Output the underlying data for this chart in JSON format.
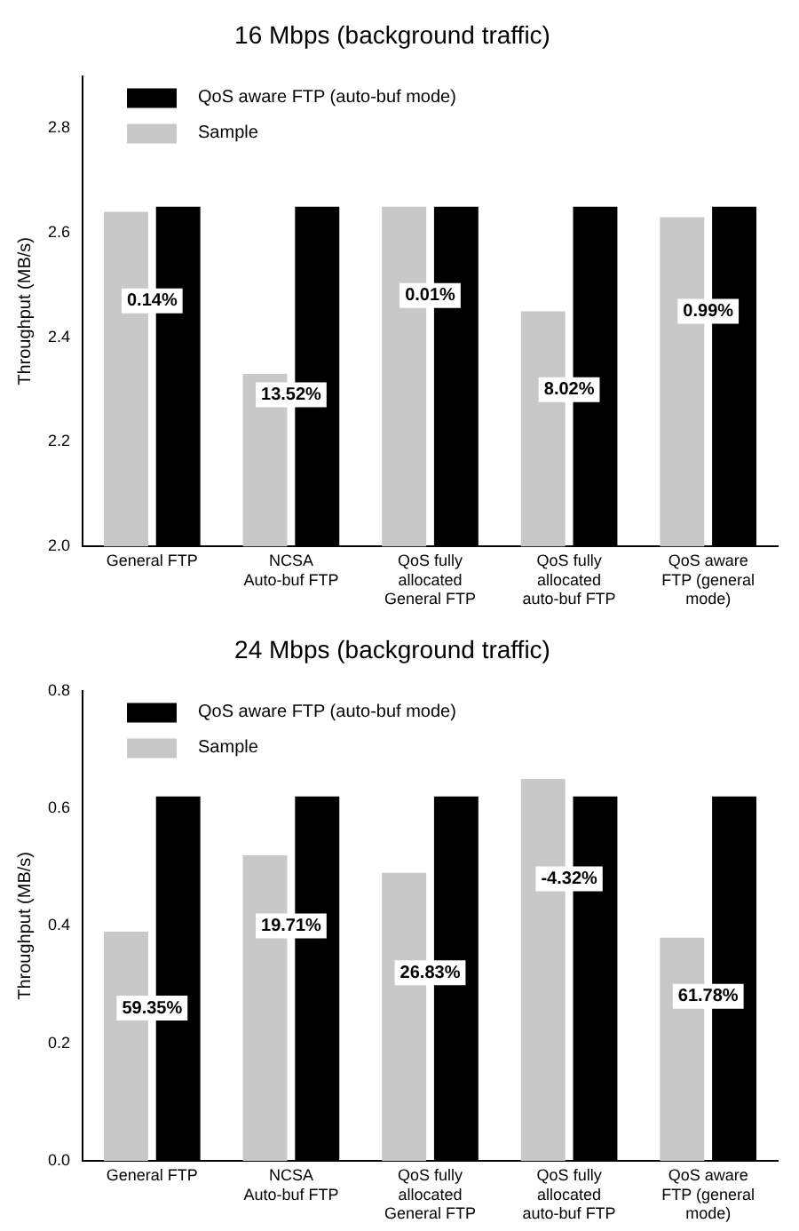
{
  "chart_data": [
    {
      "type": "bar",
      "title": "16 Mbps (background traffic)",
      "ylabel": "Throughput (MB/s)",
      "categories": [
        "General FTP",
        "NCSA Auto-buf FTP",
        "QoS fully allocated General FTP",
        "QoS fully allocated auto-buf FTP",
        "QoS aware FTP (general mode)"
      ],
      "series": [
        {
          "name": "Sample",
          "color": "#c8c8c8",
          "values": [
            2.64,
            2.33,
            2.65,
            2.45,
            2.63
          ]
        },
        {
          "name": "QoS aware FTP (auto-buf mode)",
          "color": "#000000",
          "values": [
            2.65,
            2.65,
            2.65,
            2.65,
            2.65
          ]
        }
      ],
      "ylim": [
        2.0,
        2.9
      ],
      "yticks": [
        {
          "value": 2.0,
          "label": "2.0"
        },
        {
          "value": 2.2,
          "label": "2.2"
        },
        {
          "value": 2.4,
          "label": "2.4"
        },
        {
          "value": 2.6,
          "label": "2.6"
        },
        {
          "value": 2.8,
          "label": "2.8"
        }
      ],
      "grid": false,
      "legend": "top left",
      "annotations": [
        {
          "text": "0.14%",
          "x": "General FTP",
          "y": 2.47
        },
        {
          "text": "13.52%",
          "x": "NCSA Auto-buf FTP",
          "y": 2.29
        },
        {
          "text": "0.01%",
          "x": "QoS fully allocated General FTP",
          "y": 2.48
        },
        {
          "text": "8.02%",
          "x": "QoS fully allocated auto-buf FTP",
          "y": 2.3
        },
        {
          "text": "0.99%",
          "x": "QoS aware FTP (general mode)",
          "y": 2.45
        }
      ]
    },
    {
      "type": "bar",
      "title": "24 Mbps (background traffic)",
      "ylabel": "Throughput (MB/s)",
      "categories": [
        "General FTP",
        "NCSA Auto-buf FTP",
        "QoS fully allocated General FTP",
        "QoS fully allocated auto-buf FTP",
        "QoS aware FTP (general mode)"
      ],
      "series": [
        {
          "name": "Sample",
          "color": "#c8c8c8",
          "values": [
            0.39,
            0.52,
            0.49,
            0.65,
            0.38
          ]
        },
        {
          "name": "QoS aware FTP (auto-buf mode)",
          "color": "#000000",
          "values": [
            0.62,
            0.62,
            0.62,
            0.62,
            0.62
          ]
        }
      ],
      "ylim": [
        0.0,
        0.8
      ],
      "yticks": [
        {
          "value": 0.0,
          "label": "0.0"
        },
        {
          "value": 0.2,
          "label": "0.2"
        },
        {
          "value": 0.4,
          "label": "0.4"
        },
        {
          "value": 0.6,
          "label": "0.6"
        },
        {
          "value": 0.8,
          "label": "0.8"
        }
      ],
      "grid": false,
      "legend": "top left",
      "annotations": [
        {
          "text": "59.35%",
          "x": "General FTP",
          "y": 0.26
        },
        {
          "text": "19.71%",
          "x": "NCSA Auto-buf FTP",
          "y": 0.4
        },
        {
          "text": "26.83%",
          "x": "QoS fully allocated General FTP",
          "y": 0.32
        },
        {
          "text": "-4.32%",
          "x": "QoS fully allocated auto-buf FTP",
          "y": 0.48
        },
        {
          "text": "61.78%",
          "x": "QoS aware FTP (general mode)",
          "y": 0.28
        }
      ]
    }
  ]
}
